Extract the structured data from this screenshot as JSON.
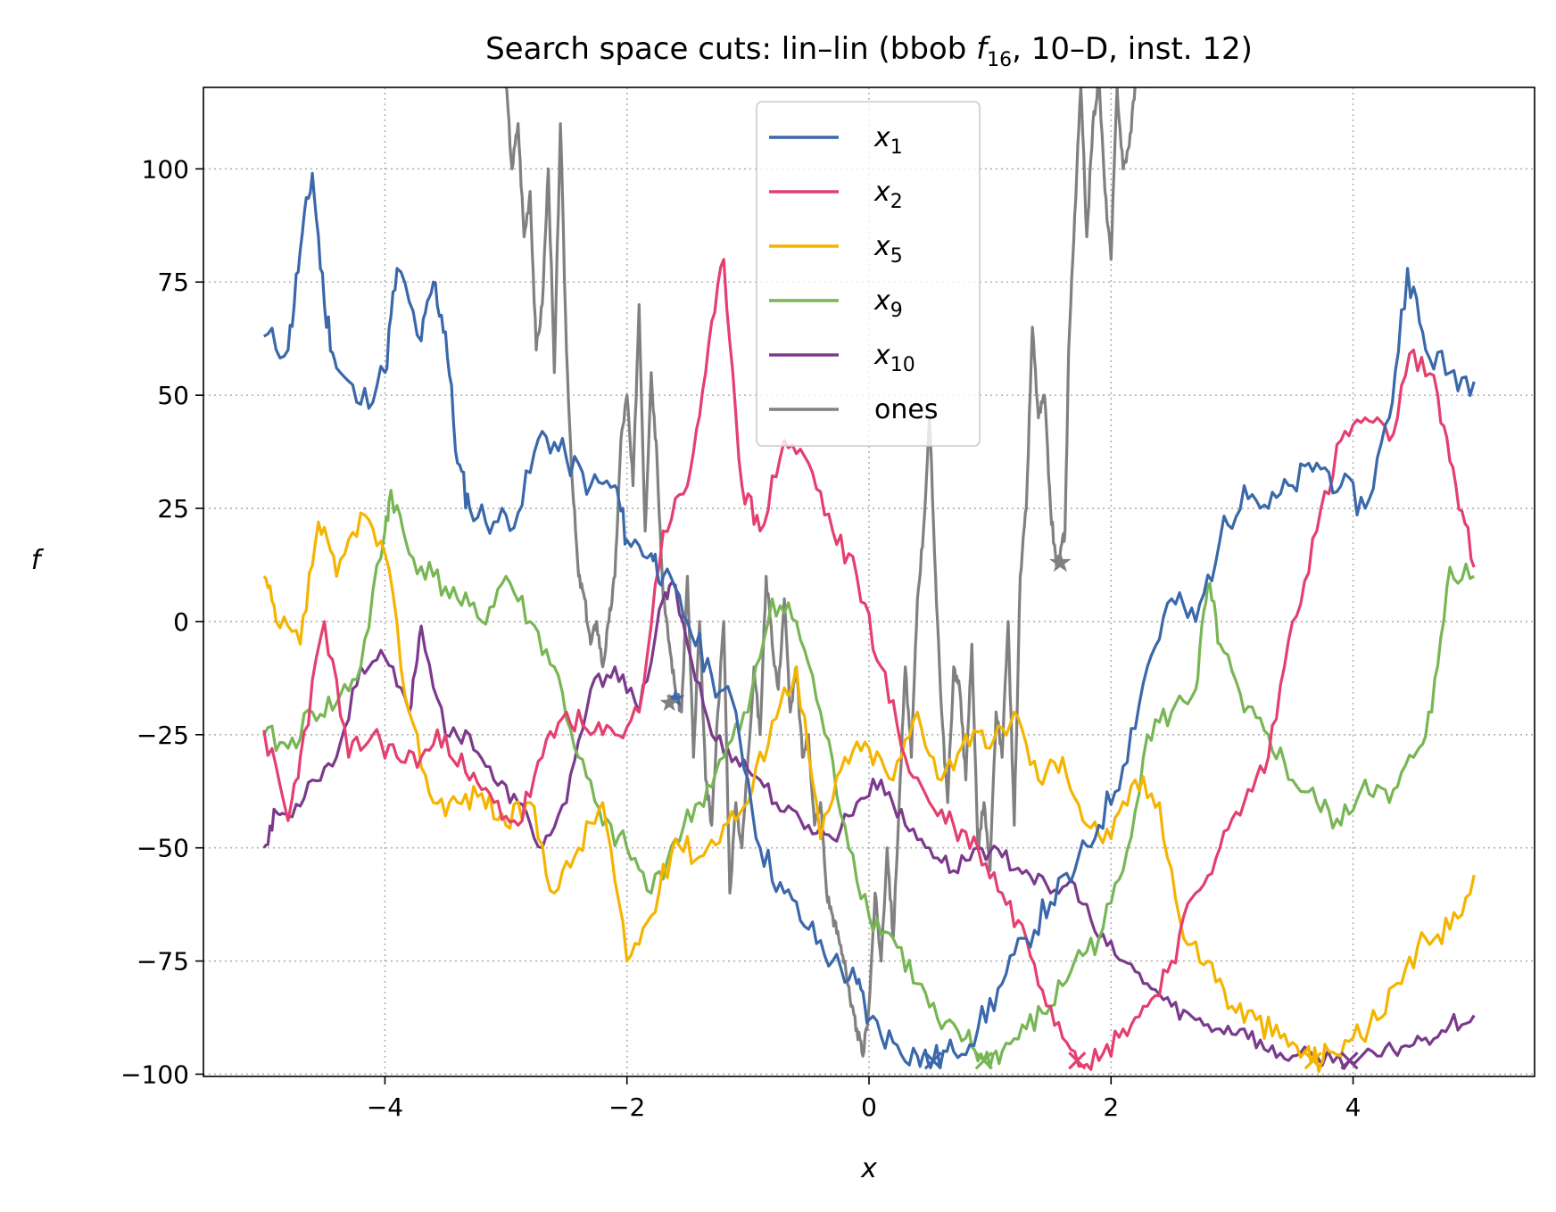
{
  "chart_data": {
    "type": "line",
    "title_parts": {
      "prefix": "Search space cuts: lin–lin (bbob ",
      "fn": "f",
      "fn_sub": "16",
      "suffix": ", 10–D, inst. 12)"
    },
    "xlabel": "x",
    "ylabel": "f",
    "xlim": [
      -5.5,
      5.5
    ],
    "ylim": [
      -100.5,
      118
    ],
    "xticks": [
      -4,
      -2,
      0,
      2,
      4
    ],
    "yticks": [
      -100,
      -75,
      -50,
      -25,
      0,
      25,
      50,
      75,
      100
    ],
    "grid": true,
    "legend_position": "upper center",
    "series": [
      {
        "name": "x1",
        "label_var": "x",
        "label_sub": "1",
        "color": "#3a68aa",
        "x": [
          -5.0,
          -4.8,
          -4.7,
          -4.6,
          -4.5,
          -4.4,
          -4.2,
          -4.0,
          -3.9,
          -3.7,
          -3.6,
          -3.5,
          -3.4,
          -3.3,
          -3.1,
          -2.9,
          -2.7,
          -2.5,
          -2.3,
          -2.1,
          -2.0,
          -1.8,
          -1.7,
          -1.5,
          -1.3,
          -1.1,
          -0.9,
          -0.7,
          -0.5,
          -0.3,
          -0.1,
          0.0,
          0.2,
          0.4,
          0.53,
          0.7,
          0.9,
          1.1,
          1.3,
          1.5,
          1.7,
          1.9,
          2.1,
          2.3,
          2.5,
          2.7,
          2.9,
          3.1,
          3.3,
          3.5,
          3.7,
          3.9,
          4.1,
          4.3,
          4.45,
          4.6,
          4.8,
          5.0
        ],
        "y": [
          63,
          60,
          82,
          99,
          70,
          56,
          48,
          55,
          78,
          62,
          75,
          64,
          35,
          25,
          22,
          24,
          42,
          36,
          30,
          30,
          18,
          15,
          10,
          0,
          -12,
          -20,
          -50,
          -60,
          -68,
          -75,
          -80,
          -88,
          -93,
          -96,
          -97,
          -95,
          -90,
          -80,
          -70,
          -62,
          -55,
          -45,
          -32,
          -10,
          5,
          0,
          18,
          30,
          25,
          30,
          35,
          30,
          25,
          45,
          78,
          60,
          55,
          53
        ]
      },
      {
        "name": "x2",
        "label_var": "x",
        "label_sub": "2",
        "color": "#e43f6f",
        "x": [
          -5.0,
          -4.8,
          -4.7,
          -4.5,
          -4.3,
          -4.1,
          -3.9,
          -3.7,
          -3.5,
          -3.3,
          -3.1,
          -2.9,
          -2.7,
          -2.5,
          -2.3,
          -2.1,
          -1.9,
          -1.7,
          -1.5,
          -1.35,
          -1.2,
          -1.05,
          -0.9,
          -0.7,
          -0.5,
          -0.3,
          -0.1,
          0.1,
          0.3,
          0.5,
          0.7,
          0.9,
          1.1,
          1.3,
          1.5,
          1.7,
          1.9,
          2.1,
          2.3,
          2.5,
          2.7,
          2.9,
          3.1,
          3.3,
          3.5,
          3.7,
          3.9,
          4.1,
          4.3,
          4.5,
          4.7,
          4.85,
          5.0
        ],
        "y": [
          -24,
          -44,
          -30,
          0,
          -30,
          -25,
          -30,
          -30,
          -25,
          -35,
          -40,
          -45,
          -30,
          -20,
          -25,
          -25,
          -20,
          20,
          30,
          55,
          80,
          30,
          20,
          40,
          35,
          20,
          10,
          -10,
          -30,
          -40,
          -45,
          -50,
          -60,
          -70,
          -85,
          -95,
          -97,
          -90,
          -85,
          -75,
          -60,
          -50,
          -40,
          -30,
          0,
          20,
          40,
          45,
          40,
          60,
          50,
          30,
          12
        ]
      },
      {
        "name": "x5",
        "label_var": "x",
        "label_sub": "5",
        "color": "#f4b400",
        "x": [
          -5.0,
          -4.9,
          -4.7,
          -4.55,
          -4.4,
          -4.2,
          -4.0,
          -3.8,
          -3.6,
          -3.4,
          -3.2,
          -3.0,
          -2.8,
          -2.6,
          -2.4,
          -2.2,
          -2.0,
          -1.8,
          -1.6,
          -1.4,
          -1.2,
          -1.0,
          -0.8,
          -0.6,
          -0.4,
          -0.2,
          0.0,
          0.2,
          0.4,
          0.6,
          0.8,
          1.0,
          1.2,
          1.4,
          1.6,
          1.8,
          2.0,
          2.2,
          2.4,
          2.6,
          2.8,
          3.0,
          3.2,
          3.4,
          3.6,
          3.7,
          3.8,
          4.0,
          4.2,
          4.4,
          4.6,
          4.8,
          5.0
        ],
        "y": [
          10,
          0,
          -5,
          22,
          10,
          24,
          15,
          -20,
          -40,
          -40,
          -38,
          -45,
          -40,
          -60,
          -50,
          -40,
          -75,
          -65,
          -48,
          -52,
          -45,
          -40,
          -22,
          -10,
          -48,
          -30,
          -28,
          -35,
          -20,
          -35,
          -25,
          -28,
          -20,
          -35,
          -30,
          -45,
          -48,
          -35,
          -40,
          -70,
          -75,
          -85,
          -88,
          -92,
          -95,
          -97,
          -95,
          -92,
          -88,
          -80,
          -70,
          -68,
          -56
        ]
      },
      {
        "name": "x9",
        "label_var": "x",
        "label_sub": "9",
        "color": "#78b655",
        "x": [
          -5.0,
          -4.8,
          -4.6,
          -4.4,
          -4.2,
          -4.0,
          -3.95,
          -3.8,
          -3.6,
          -3.4,
          -3.2,
          -3.0,
          -2.8,
          -2.6,
          -2.4,
          -2.2,
          -2.0,
          -1.8,
          -1.6,
          -1.4,
          -1.2,
          -1.0,
          -0.8,
          -0.6,
          -0.4,
          -0.2,
          0.0,
          0.2,
          0.4,
          0.6,
          0.8,
          0.95,
          1.1,
          1.3,
          1.5,
          1.7,
          1.9,
          2.1,
          2.3,
          2.5,
          2.7,
          2.8,
          2.9,
          3.1,
          3.3,
          3.5,
          3.7,
          3.9,
          4.1,
          4.3,
          4.5,
          4.65,
          4.8,
          5.0
        ],
        "y": [
          -25,
          -28,
          -20,
          -18,
          -10,
          20,
          29,
          15,
          10,
          5,
          0,
          10,
          0,
          -10,
          -30,
          -45,
          -50,
          -60,
          -48,
          -40,
          -30,
          -20,
          5,
          0,
          -20,
          -45,
          -65,
          -70,
          -80,
          -90,
          -92,
          -97,
          -95,
          -90,
          -85,
          -75,
          -70,
          -55,
          -25,
          -20,
          -15,
          8,
          -5,
          -20,
          -25,
          -35,
          -40,
          -45,
          -35,
          -40,
          -30,
          -20,
          12,
          10
        ]
      },
      {
        "name": "x10",
        "label_var": "x",
        "label_sub": "10",
        "color": "#7b3a8c",
        "x": [
          -5.0,
          -4.9,
          -4.8,
          -4.6,
          -4.4,
          -4.2,
          -4.0,
          -3.8,
          -3.7,
          -3.5,
          -3.3,
          -3.1,
          -2.9,
          -2.7,
          -2.5,
          -2.3,
          -2.1,
          -1.9,
          -1.7,
          -1.6,
          -1.5,
          -1.3,
          -1.1,
          -0.9,
          -0.7,
          -0.5,
          -0.3,
          -0.1,
          0.1,
          0.3,
          0.5,
          0.7,
          0.9,
          1.1,
          1.3,
          1.5,
          1.7,
          1.9,
          2.1,
          2.3,
          2.5,
          2.7,
          2.9,
          3.1,
          3.3,
          3.5,
          3.7,
          3.97,
          4.2,
          4.4,
          4.6,
          4.8,
          5.0
        ],
        "y": [
          -50,
          -42,
          -43,
          -35,
          -30,
          -10,
          -8,
          -20,
          -1,
          -25,
          -25,
          -35,
          -40,
          -50,
          -40,
          -15,
          -10,
          -20,
          5,
          8,
          -5,
          -25,
          -30,
          -35,
          -42,
          -45,
          -48,
          -40,
          -35,
          -45,
          -50,
          -55,
          -50,
          -52,
          -55,
          -60,
          -58,
          -70,
          -75,
          -80,
          -85,
          -88,
          -90,
          -90,
          -95,
          -96,
          -96,
          -97,
          -96,
          -94,
          -92,
          -89,
          -87
        ]
      },
      {
        "name": "ones",
        "label_var": "",
        "label_sub": "",
        "color": "#808080",
        "x": [
          -3.0,
          -2.95,
          -2.9,
          -2.85,
          -2.8,
          -2.75,
          -2.7,
          -2.65,
          -2.6,
          -2.55,
          -2.5,
          -2.45,
          -2.4,
          -2.35,
          -2.3,
          -2.25,
          -2.2,
          -2.15,
          -2.1,
          -2.05,
          -2.0,
          -1.95,
          -1.9,
          -1.85,
          -1.8,
          -1.75,
          -1.7,
          -1.65,
          -1.6,
          -1.55,
          -1.5,
          -1.45,
          -1.4,
          -1.35,
          -1.3,
          -1.25,
          -1.2,
          -1.15,
          -1.1,
          -1.05,
          -1.0,
          -0.95,
          -0.9,
          -0.85,
          -0.8,
          -0.75,
          -0.7,
          -0.65,
          -0.6,
          -0.55,
          -0.5,
          -0.45,
          -0.4,
          -0.35,
          -0.3,
          -0.25,
          -0.2,
          -0.15,
          -0.1,
          -0.05,
          0.0,
          0.05,
          0.1,
          0.15,
          0.2,
          0.25,
          0.3,
          0.35,
          0.4,
          0.45,
          0.5,
          0.55,
          0.6,
          0.65,
          0.7,
          0.75,
          0.8,
          0.85,
          0.9,
          0.95,
          1.0,
          1.05,
          1.1,
          1.15,
          1.2,
          1.25,
          1.3,
          1.35,
          1.4,
          1.45,
          1.5,
          1.55,
          1.58,
          1.62,
          1.65,
          1.7,
          1.75,
          1.8,
          1.85,
          1.9,
          1.95,
          2.0,
          2.05,
          2.1,
          2.15,
          2.2,
          2.25,
          2.3,
          2.35
        ],
        "y": [
          119,
          100,
          110,
          85,
          95,
          60,
          70,
          100,
          55,
          110,
          60,
          30,
          10,
          5,
          -5,
          0,
          -10,
          0,
          10,
          40,
          50,
          30,
          70,
          20,
          55,
          35,
          5,
          -5,
          -15,
          -20,
          10,
          -30,
          0,
          -35,
          -45,
          -20,
          0,
          -60,
          -40,
          -50,
          -30,
          -10,
          -25,
          10,
          -5,
          -15,
          5,
          -20,
          -10,
          -30,
          -25,
          -45,
          -40,
          -60,
          -65,
          -70,
          -75,
          -85,
          -90,
          -96,
          -85,
          -60,
          -75,
          -50,
          -70,
          -40,
          -10,
          -30,
          5,
          20,
          45,
          10,
          -20,
          -40,
          -10,
          -15,
          -35,
          -5,
          -50,
          -40,
          -55,
          -20,
          -30,
          0,
          -45,
          10,
          25,
          65,
          45,
          50,
          25,
          12,
          15,
          20,
          60,
          90,
          118,
          85,
          110,
          120,
          95,
          80,
          118,
          100,
          105,
          119,
          120,
          120,
          119
        ],
        "marker_at": {
          "x": 1.58,
          "y": 13
        }
      }
    ],
    "minima_markers": [
      {
        "series": "x1",
        "x": 0.53,
        "y": -97,
        "color": "#3a68aa"
      },
      {
        "series": "x9",
        "x": 0.95,
        "y": -97,
        "color": "#78b655"
      },
      {
        "series": "x2",
        "x": 1.72,
        "y": -97,
        "color": "#e43f6f"
      },
      {
        "series": "x5",
        "x": 3.67,
        "y": -97,
        "color": "#f4b400"
      },
      {
        "series": "x10",
        "x": 3.97,
        "y": -97,
        "color": "#7b3a8c"
      }
    ],
    "extra_markers": [
      {
        "series": "x1",
        "shape": "star",
        "x": -1.6,
        "y": -17,
        "color": "#3a68aa"
      },
      {
        "series": "ones",
        "shape": "star",
        "x": -1.65,
        "y": -18,
        "color": "#808080"
      }
    ]
  }
}
